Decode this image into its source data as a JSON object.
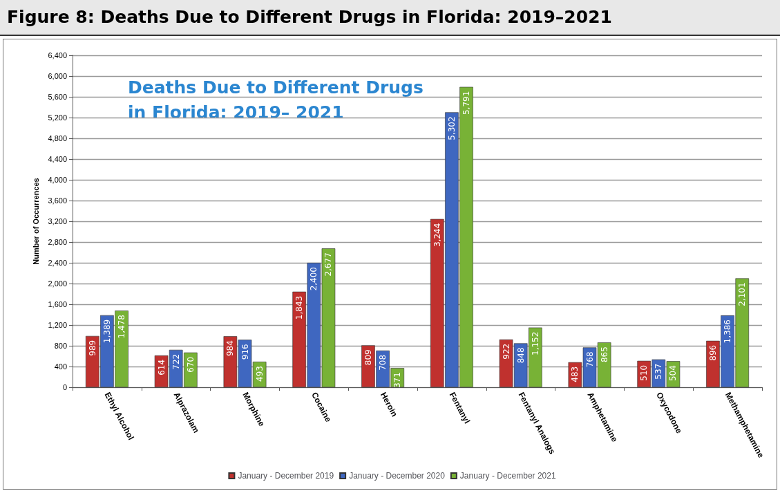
{
  "chart_data": {
    "type": "bar",
    "title": "Figure 8: Deaths Due to Different Drugs in Florida: 2019–2021",
    "subtitle": "Deaths Due to Different Drugs\nin Florida: 2019– 2021",
    "ylabel": "Number of Occurrences",
    "categories": [
      "Ethyl Alcohol",
      "Alprazolam",
      "Morphine",
      "Cocaine",
      "Heroin",
      "Fentanyl",
      "Fentanyl Analogs",
      "Amphetamine",
      "Oxycodone",
      "Methamphetamine"
    ],
    "series": [
      {
        "name": "January - December 2019",
        "color": "#c0312e",
        "values": [
          989,
          614,
          984,
          1843,
          809,
          3244,
          922,
          483,
          510,
          896
        ],
        "value_labels": [
          "989",
          "614",
          "984",
          "1,843",
          "809",
          "3,244",
          "922",
          "483",
          "510",
          "896"
        ]
      },
      {
        "name": "January - December 2020",
        "color": "#3f67c0",
        "values": [
          1389,
          722,
          916,
          2400,
          708,
          5302,
          848,
          768,
          537,
          1386
        ],
        "value_labels": [
          "1,389",
          "722",
          "916",
          "2,400",
          "708",
          "5,302",
          "848",
          "768",
          "537",
          "1,386"
        ]
      },
      {
        "name": "January - December 2021",
        "color": "#78b236",
        "values": [
          1478,
          670,
          493,
          2677,
          371,
          5791,
          1152,
          865,
          504,
          2101
        ],
        "value_labels": [
          "1,478",
          "670",
          "493",
          "2,677",
          "371",
          "5,791",
          "1,152",
          "865",
          "504",
          "2,101"
        ]
      }
    ],
    "ylim": [
      0,
      6400
    ],
    "yticks": [
      0,
      400,
      800,
      {
        "value": 1200,
        "label": "1,200"
      },
      {
        "value": 1600,
        "label": "1,600"
      },
      {
        "value": 2000,
        "label": "2,000"
      },
      {
        "value": 2400,
        "label": "2,400"
      },
      {
        "value": 2800,
        "label": "2,800"
      },
      {
        "value": 3200,
        "label": "3,200"
      },
      {
        "value": 3600,
        "label": "3,600"
      },
      {
        "value": 4000,
        "label": "4,000"
      },
      {
        "value": 4400,
        "label": "4,400"
      },
      {
        "value": 4800,
        "label": "4,800"
      },
      {
        "value": 5200,
        "label": "5,200"
      },
      {
        "value": 5600,
        "label": "5,600"
      },
      {
        "value": 6000,
        "label": "6,000"
      },
      {
        "value": 6400,
        "label": "6,400"
      }
    ],
    "grid": "y",
    "legend": "bottom"
  }
}
